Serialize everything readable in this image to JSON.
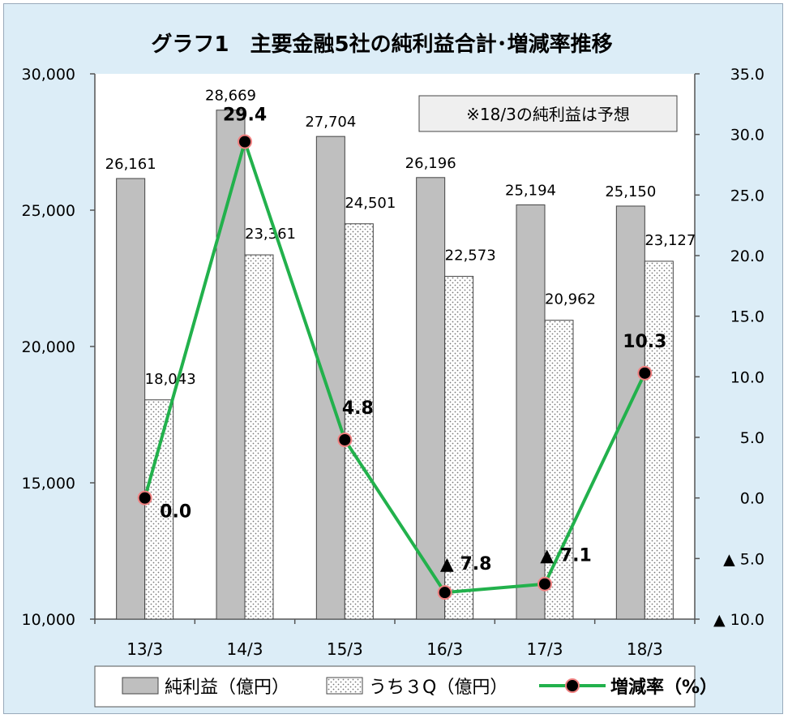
{
  "chart_data": {
    "type": "bar",
    "title": "グラフ1　主要金融5社の純利益合計･増減率推移",
    "note": "※18/3の純利益は予想",
    "categories": [
      "13/3",
      "14/3",
      "15/3",
      "16/3",
      "17/3",
      "18/3"
    ],
    "series": [
      {
        "name": "純利益（億円）",
        "type": "bar",
        "values": [
          26161,
          28669,
          27704,
          26196,
          25194,
          25150
        ],
        "labels": [
          "26,161",
          "28,669",
          "27,704",
          "26,196",
          "25,194",
          "25,150"
        ],
        "color": "#bfbfbf"
      },
      {
        "name": "うち３Q（億円）",
        "type": "bar",
        "values": [
          18043,
          23361,
          24501,
          22573,
          20962,
          23127
        ],
        "labels": [
          "18,043",
          "23,361",
          "24,501",
          "22,573",
          "20,962",
          "23,127"
        ],
        "pattern": "dotted"
      },
      {
        "name": "増減率（%）",
        "type": "line",
        "axis": "right",
        "values": [
          0.0,
          29.4,
          4.8,
          -7.8,
          -7.1,
          10.3
        ],
        "labels": [
          "0.0",
          "29.4",
          "4.8",
          "▲ 7.8",
          "▲ 7.1",
          "10.3"
        ],
        "color": "#22b14c",
        "marker_color": "#000000",
        "marker_edge": "#f08080"
      }
    ],
    "y_left": {
      "ylim": [
        10000,
        30000
      ],
      "ticks": [
        10000,
        15000,
        20000,
        25000,
        30000
      ],
      "tick_labels": [
        "10,000",
        "15,000",
        "20,000",
        "25,000",
        "30,000"
      ]
    },
    "y_right": {
      "ylim": [
        -10,
        35
      ],
      "ticks": [
        -10,
        -5,
        0,
        5,
        10,
        15,
        20,
        25,
        30,
        35
      ],
      "tick_labels": [
        "▲ 10.0",
        "▲ 5.0",
        "0.0",
        "5.0",
        "10.0",
        "15.0",
        "20.0",
        "25.0",
        "30.0",
        "35.0"
      ]
    },
    "grid": false,
    "legend": "bottom"
  }
}
